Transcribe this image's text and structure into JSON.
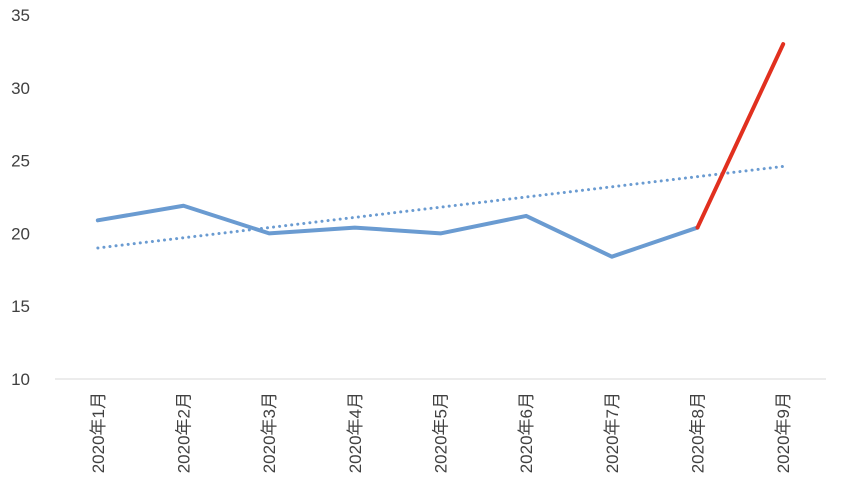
{
  "chart_data": {
    "type": "line",
    "title": "",
    "xlabel": "",
    "ylabel": "",
    "categories": [
      "2020年1月",
      "2020年2月",
      "2020年3月",
      "2020年4月",
      "2020年5月",
      "2020年6月",
      "2020年7月",
      "2020年8月",
      "2020年9月"
    ],
    "ylim": [
      10,
      35
    ],
    "yticks": [
      10,
      15,
      20,
      25,
      30,
      35
    ],
    "grid": false,
    "legend": "none",
    "series": [
      {
        "style": "solid",
        "color": "#6a9bd1",
        "values": [
          20.9,
          21.9,
          20.0,
          20.4,
          20.0,
          21.2,
          18.4,
          20.4,
          null
        ]
      },
      {
        "style": "solid",
        "color": "#e1301f",
        "values": [
          null,
          null,
          null,
          null,
          null,
          null,
          null,
          20.4,
          33.0
        ]
      },
      {
        "style": "dotted",
        "color": "#6a9bd1",
        "values": [
          19.0,
          19.7,
          20.4,
          21.1,
          21.8,
          22.5,
          23.2,
          23.9,
          24.6
        ]
      }
    ]
  }
}
